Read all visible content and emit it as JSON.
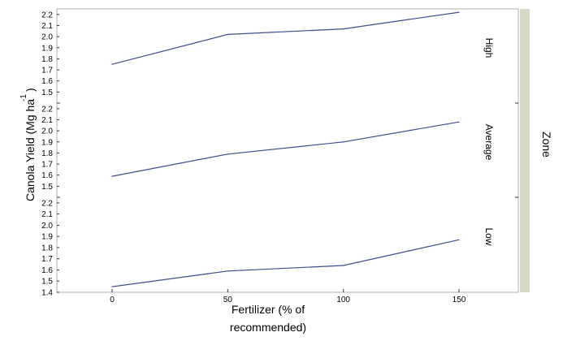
{
  "chart_data": {
    "type": "line",
    "xlabel_line1": "Fertilizer (% of",
    "xlabel_line2": "recommended)",
    "ylabel": "Canola Yield (Mg ha",
    "ylabel_superscript": "-1",
    "ylabel_close": ")",
    "facet_title": "Zone",
    "x": [
      0,
      50,
      100,
      150
    ],
    "x_ticks": [
      "0",
      "50",
      "100",
      "150"
    ],
    "ylim": [
      1.4,
      2.25
    ],
    "y_tick_values": [
      1.4,
      1.5,
      1.6,
      1.7,
      1.8,
      1.9,
      2.0,
      2.1,
      2.2
    ],
    "y_tick_labels": [
      "1.4",
      "1.5",
      "1.6",
      "1.7",
      "1.8",
      "1.9",
      "2.0",
      "2.1",
      "2.2"
    ],
    "line_color": "#3d4d8c",
    "strip_color": "#d8d8c8",
    "panels": [
      {
        "label": "High",
        "values": [
          1.75,
          2.02,
          2.07,
          2.22
        ]
      },
      {
        "label": "Average",
        "values": [
          1.59,
          1.79,
          1.9,
          2.08
        ]
      },
      {
        "label": "Low",
        "values": [
          1.45,
          1.59,
          1.64,
          1.87
        ]
      }
    ]
  }
}
